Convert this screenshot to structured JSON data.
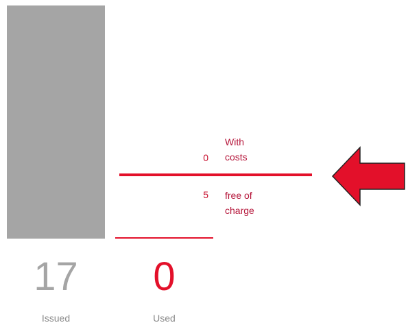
{
  "issued": {
    "value": 17,
    "label": "Issued"
  },
  "used": {
    "value": 0,
    "label": "Used"
  },
  "breakdown": [
    {
      "value": 0,
      "label": "With costs"
    },
    {
      "value": 5,
      "label": "free of charge"
    }
  ]
}
